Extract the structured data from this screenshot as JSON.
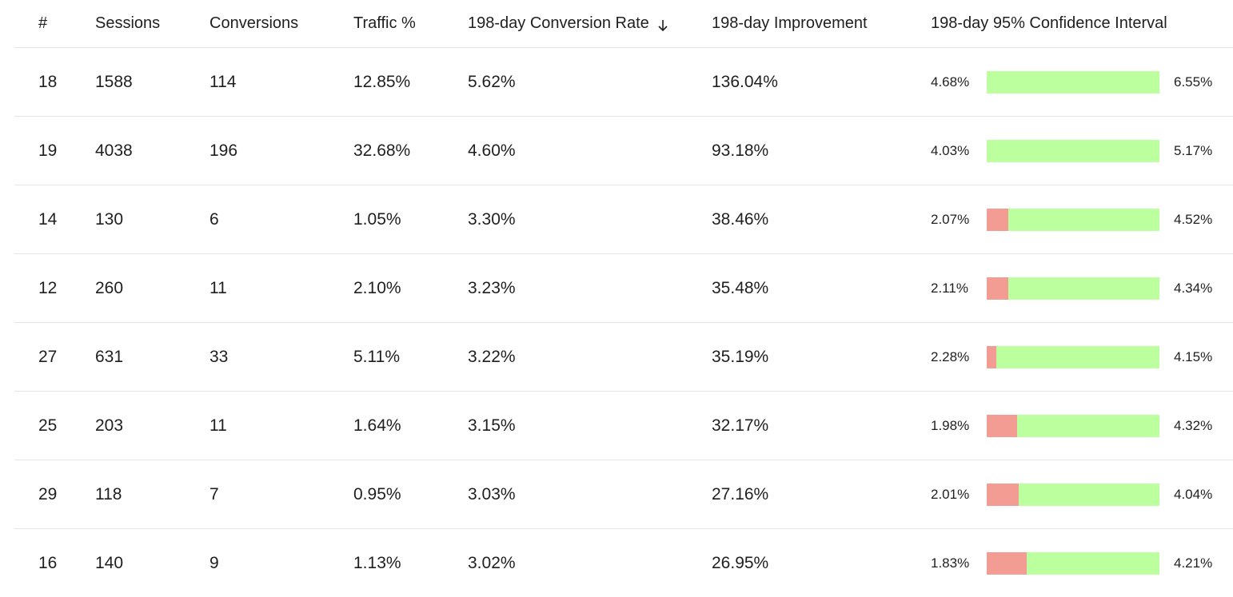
{
  "colors": {
    "positive": "#bbff9f",
    "negative": "#f29c94",
    "divider": "#e6e6e6"
  },
  "header": {
    "num": "#",
    "sessions": "Sessions",
    "conversions": "Conversions",
    "traffic": "Traffic %",
    "rate": "198-day Conversion Rate",
    "rate_sort_icon": "arrow-down-icon",
    "improvement": "198-day Improvement",
    "ci": "198-day 95% Confidence Interval"
  },
  "rows": [
    {
      "num": "18",
      "sessions": "1588",
      "conversions": "114",
      "traffic": "12.85%",
      "rate": "5.62%",
      "improvement": "136.04%",
      "ci_low": "4.68%",
      "ci_high": "6.55%",
      "ci_negative_fraction": 0.0
    },
    {
      "num": "19",
      "sessions": "4038",
      "conversions": "196",
      "traffic": "32.68%",
      "rate": "4.60%",
      "improvement": "93.18%",
      "ci_low": "4.03%",
      "ci_high": "5.17%",
      "ci_negative_fraction": 0.0
    },
    {
      "num": "14",
      "sessions": "130",
      "conversions": "6",
      "traffic": "1.05%",
      "rate": "3.30%",
      "improvement": "38.46%",
      "ci_low": "2.07%",
      "ci_high": "4.52%",
      "ci_negative_fraction": 0.125
    },
    {
      "num": "12",
      "sessions": "260",
      "conversions": "11",
      "traffic": "2.10%",
      "rate": "3.23%",
      "improvement": "35.48%",
      "ci_low": "2.11%",
      "ci_high": "4.34%",
      "ci_negative_fraction": 0.125
    },
    {
      "num": "27",
      "sessions": "631",
      "conversions": "33",
      "traffic": "5.11%",
      "rate": "3.22%",
      "improvement": "35.19%",
      "ci_low": "2.28%",
      "ci_high": "4.15%",
      "ci_negative_fraction": 0.056
    },
    {
      "num": "25",
      "sessions": "203",
      "conversions": "11",
      "traffic": "1.64%",
      "rate": "3.15%",
      "improvement": "32.17%",
      "ci_low": "1.98%",
      "ci_high": "4.32%",
      "ci_negative_fraction": 0.176
    },
    {
      "num": "29",
      "sessions": "118",
      "conversions": "7",
      "traffic": "0.95%",
      "rate": "3.03%",
      "improvement": "27.16%",
      "ci_low": "2.01%",
      "ci_high": "4.04%",
      "ci_negative_fraction": 0.185
    },
    {
      "num": "16",
      "sessions": "140",
      "conversions": "9",
      "traffic": "1.13%",
      "rate": "3.02%",
      "improvement": "26.95%",
      "ci_low": "1.83%",
      "ci_high": "4.21%",
      "ci_negative_fraction": 0.231
    }
  ]
}
